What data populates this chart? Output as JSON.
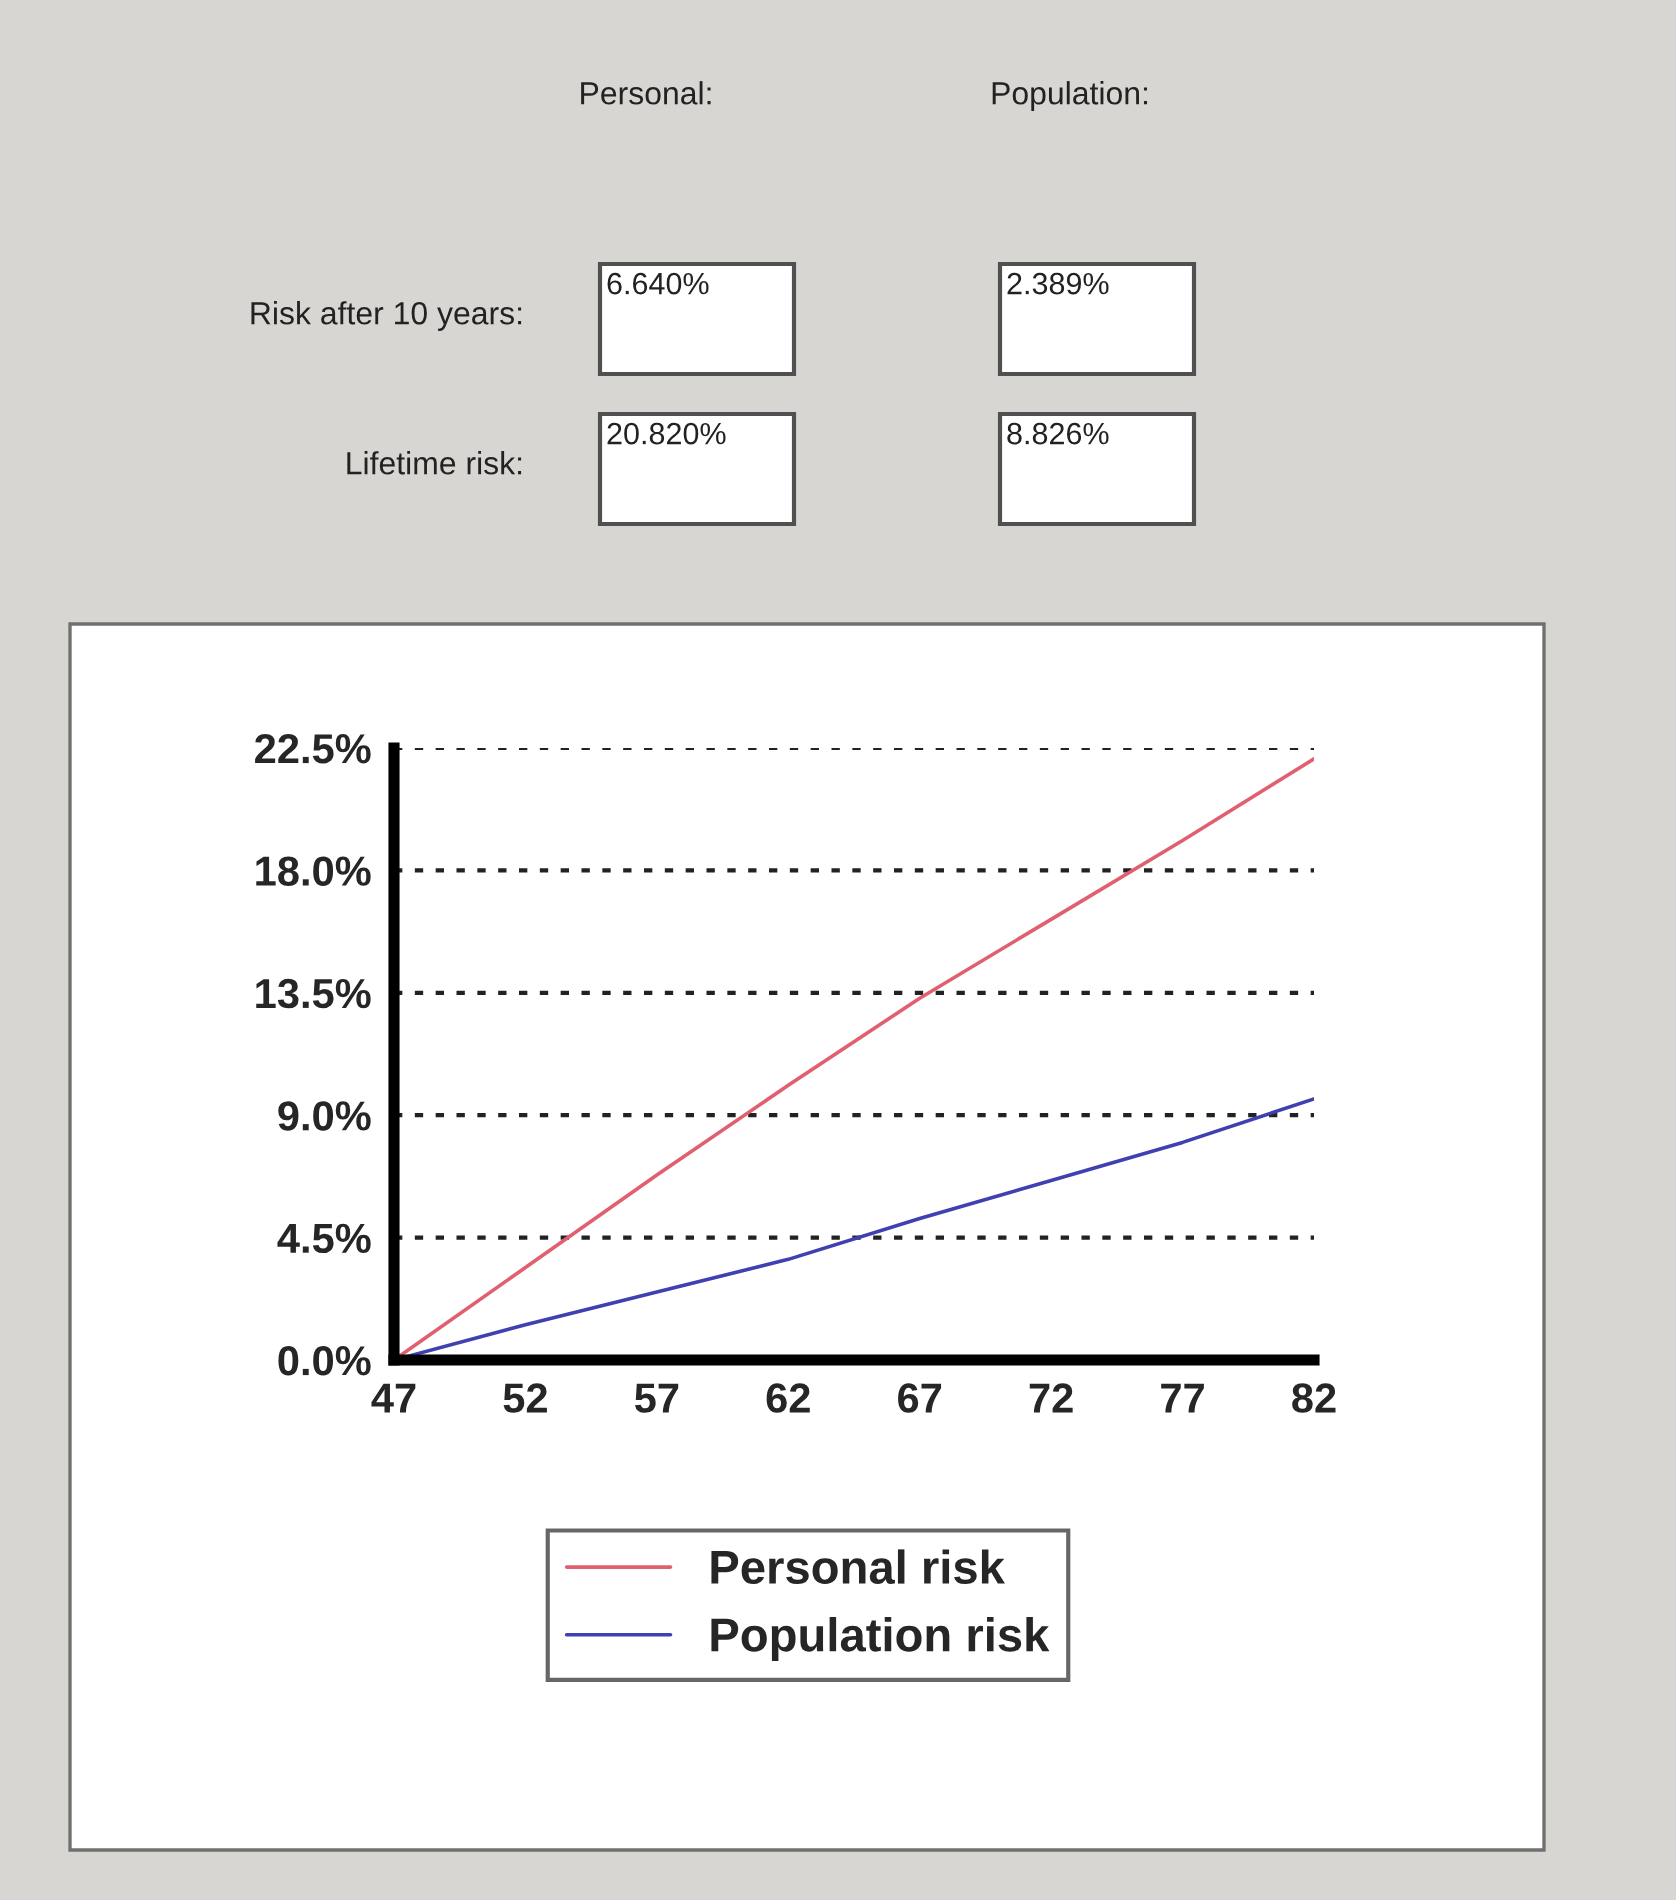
{
  "chart_data": {
    "type": "line",
    "annotations": [
      "Personal:",
      "Population:",
      "Risk after 10 years:",
      "6.640%",
      "2.389%",
      "Lifetime risk:",
      "20.820%",
      "8.826%"
    ],
    "x": [
      47,
      52,
      57,
      62,
      67,
      72,
      77,
      82
    ],
    "series": [
      {
        "name": "Personal risk",
        "color": "#e06070",
        "values": [
          0,
          3.4,
          6.8,
          10.1,
          13.3,
          16.2,
          19.1,
          22.1
        ]
      },
      {
        "name": "Population risk",
        "color": "#4040b0",
        "values": [
          0,
          1.3,
          2.5,
          3.7,
          5.2,
          6.6,
          8.0,
          9.6
        ]
      }
    ],
    "xlim": [
      47,
      82
    ],
    "xticks": [
      47,
      52,
      57,
      62,
      67,
      72,
      77,
      82
    ],
    "ylim": [
      0,
      22.5
    ],
    "yticks": [
      {
        "value": 0,
        "label": "0.0%"
      },
      {
        "value": 4.5,
        "label": "4.5%"
      },
      {
        "value": 9,
        "label": "9.0%"
      },
      {
        "value": 13.5,
        "label": "13.5%"
      },
      {
        "value": 18,
        "label": "18.0%"
      },
      {
        "value": 22.5,
        "label": "22.5%"
      }
    ],
    "grid": "y",
    "legend": "bottom"
  }
}
